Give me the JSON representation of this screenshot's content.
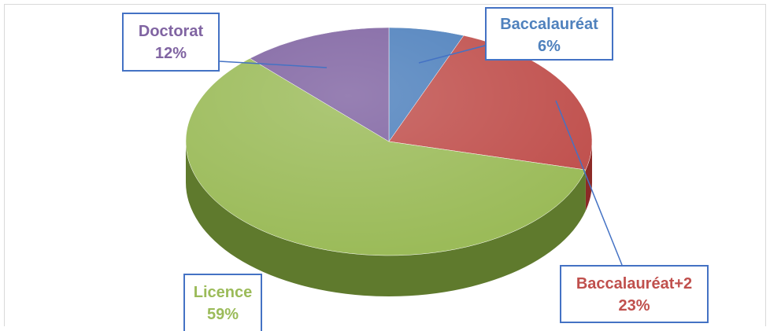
{
  "chart_data": {
    "type": "pie",
    "style": "3d",
    "slices": [
      {
        "label": "Baccalauréat",
        "value": 6,
        "value_label": "6%",
        "color": "#4f81bd",
        "side_color": "#2e5b8f"
      },
      {
        "label": "Baccalauréat+2",
        "value": 23,
        "value_label": "23%",
        "color": "#c0504d",
        "side_color": "#8c2a27"
      },
      {
        "label": "Licence",
        "value": 59,
        "value_label": "59%",
        "color": "#9bbb59",
        "side_color": "#5f7a2d"
      },
      {
        "label": "Doctorat",
        "value": 12,
        "value_label": "12%",
        "color": "#8064a2",
        "side_color": "#5a4378"
      }
    ],
    "legend": "none",
    "callout_border_color": "#4472c4"
  }
}
